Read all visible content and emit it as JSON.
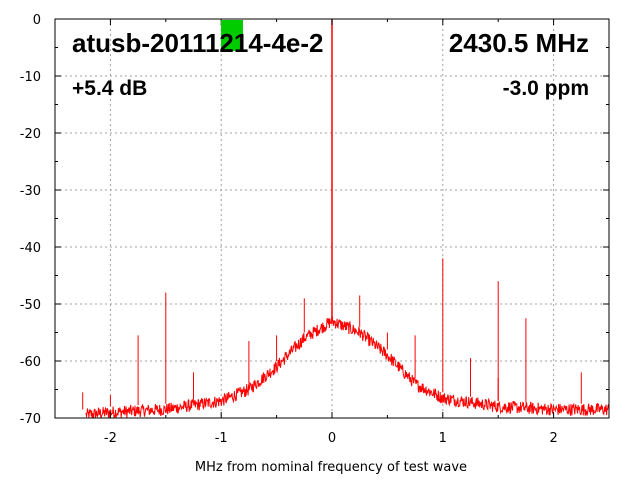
{
  "chart_data": {
    "type": "line",
    "title": "",
    "xlabel": "MHz from nominal frequency of test wave",
    "ylabel": "",
    "xlim": [
      -2.5,
      2.5
    ],
    "ylim": [
      -70,
      0
    ],
    "x_ticks": [
      -2,
      -1,
      0,
      1,
      2
    ],
    "y_ticks": [
      0,
      -10,
      -20,
      -30,
      -40,
      -50,
      -60,
      -70
    ],
    "grid": true,
    "series_color": "#ff0000",
    "marker_color": "#00cc00",
    "annotations": {
      "device": "atusb-20111214-4e-2",
      "frequency": "2430.5 MHz",
      "gain": "+5.4 dB",
      "offset": "-3.0 ppm"
    },
    "noise_floor": {
      "x": [
        -2.5,
        -2.0,
        -1.5,
        -1.0,
        -0.75,
        -0.5,
        -0.25,
        0.0,
        0.25,
        0.5,
        0.75,
        1.0,
        1.5,
        2.0,
        2.5
      ],
      "y": [
        -70,
        -69,
        -68.5,
        -67,
        -65,
        -61,
        -56,
        -53,
        -55,
        -59,
        -64,
        -66.5,
        -68,
        -68.5,
        -68.5
      ]
    },
    "carrier": {
      "x": 0.0,
      "y": 0
    },
    "spurs": [
      {
        "x": -2.25,
        "y": -65.5
      },
      {
        "x": -2.0,
        "y": -66.0
      },
      {
        "x": -1.75,
        "y": -55.5
      },
      {
        "x": -1.5,
        "y": -48.0
      },
      {
        "x": -1.25,
        "y": -62.0
      },
      {
        "x": -0.75,
        "y": -56.5
      },
      {
        "x": -0.5,
        "y": -55.5
      },
      {
        "x": -0.25,
        "y": -49.0
      },
      {
        "x": 0.0,
        "y": -46.5
      },
      {
        "x": 0.25,
        "y": -48.5
      },
      {
        "x": 0.5,
        "y": -55.0
      },
      {
        "x": 0.75,
        "y": -55.5
      },
      {
        "x": 1.0,
        "y": -42.0
      },
      {
        "x": 1.25,
        "y": -59.5
      },
      {
        "x": 1.5,
        "y": -46.0
      },
      {
        "x": 1.5,
        "y": -63.0
      },
      {
        "x": 1.75,
        "y": -52.5
      },
      {
        "x": 2.25,
        "y": -62.0
      }
    ]
  }
}
